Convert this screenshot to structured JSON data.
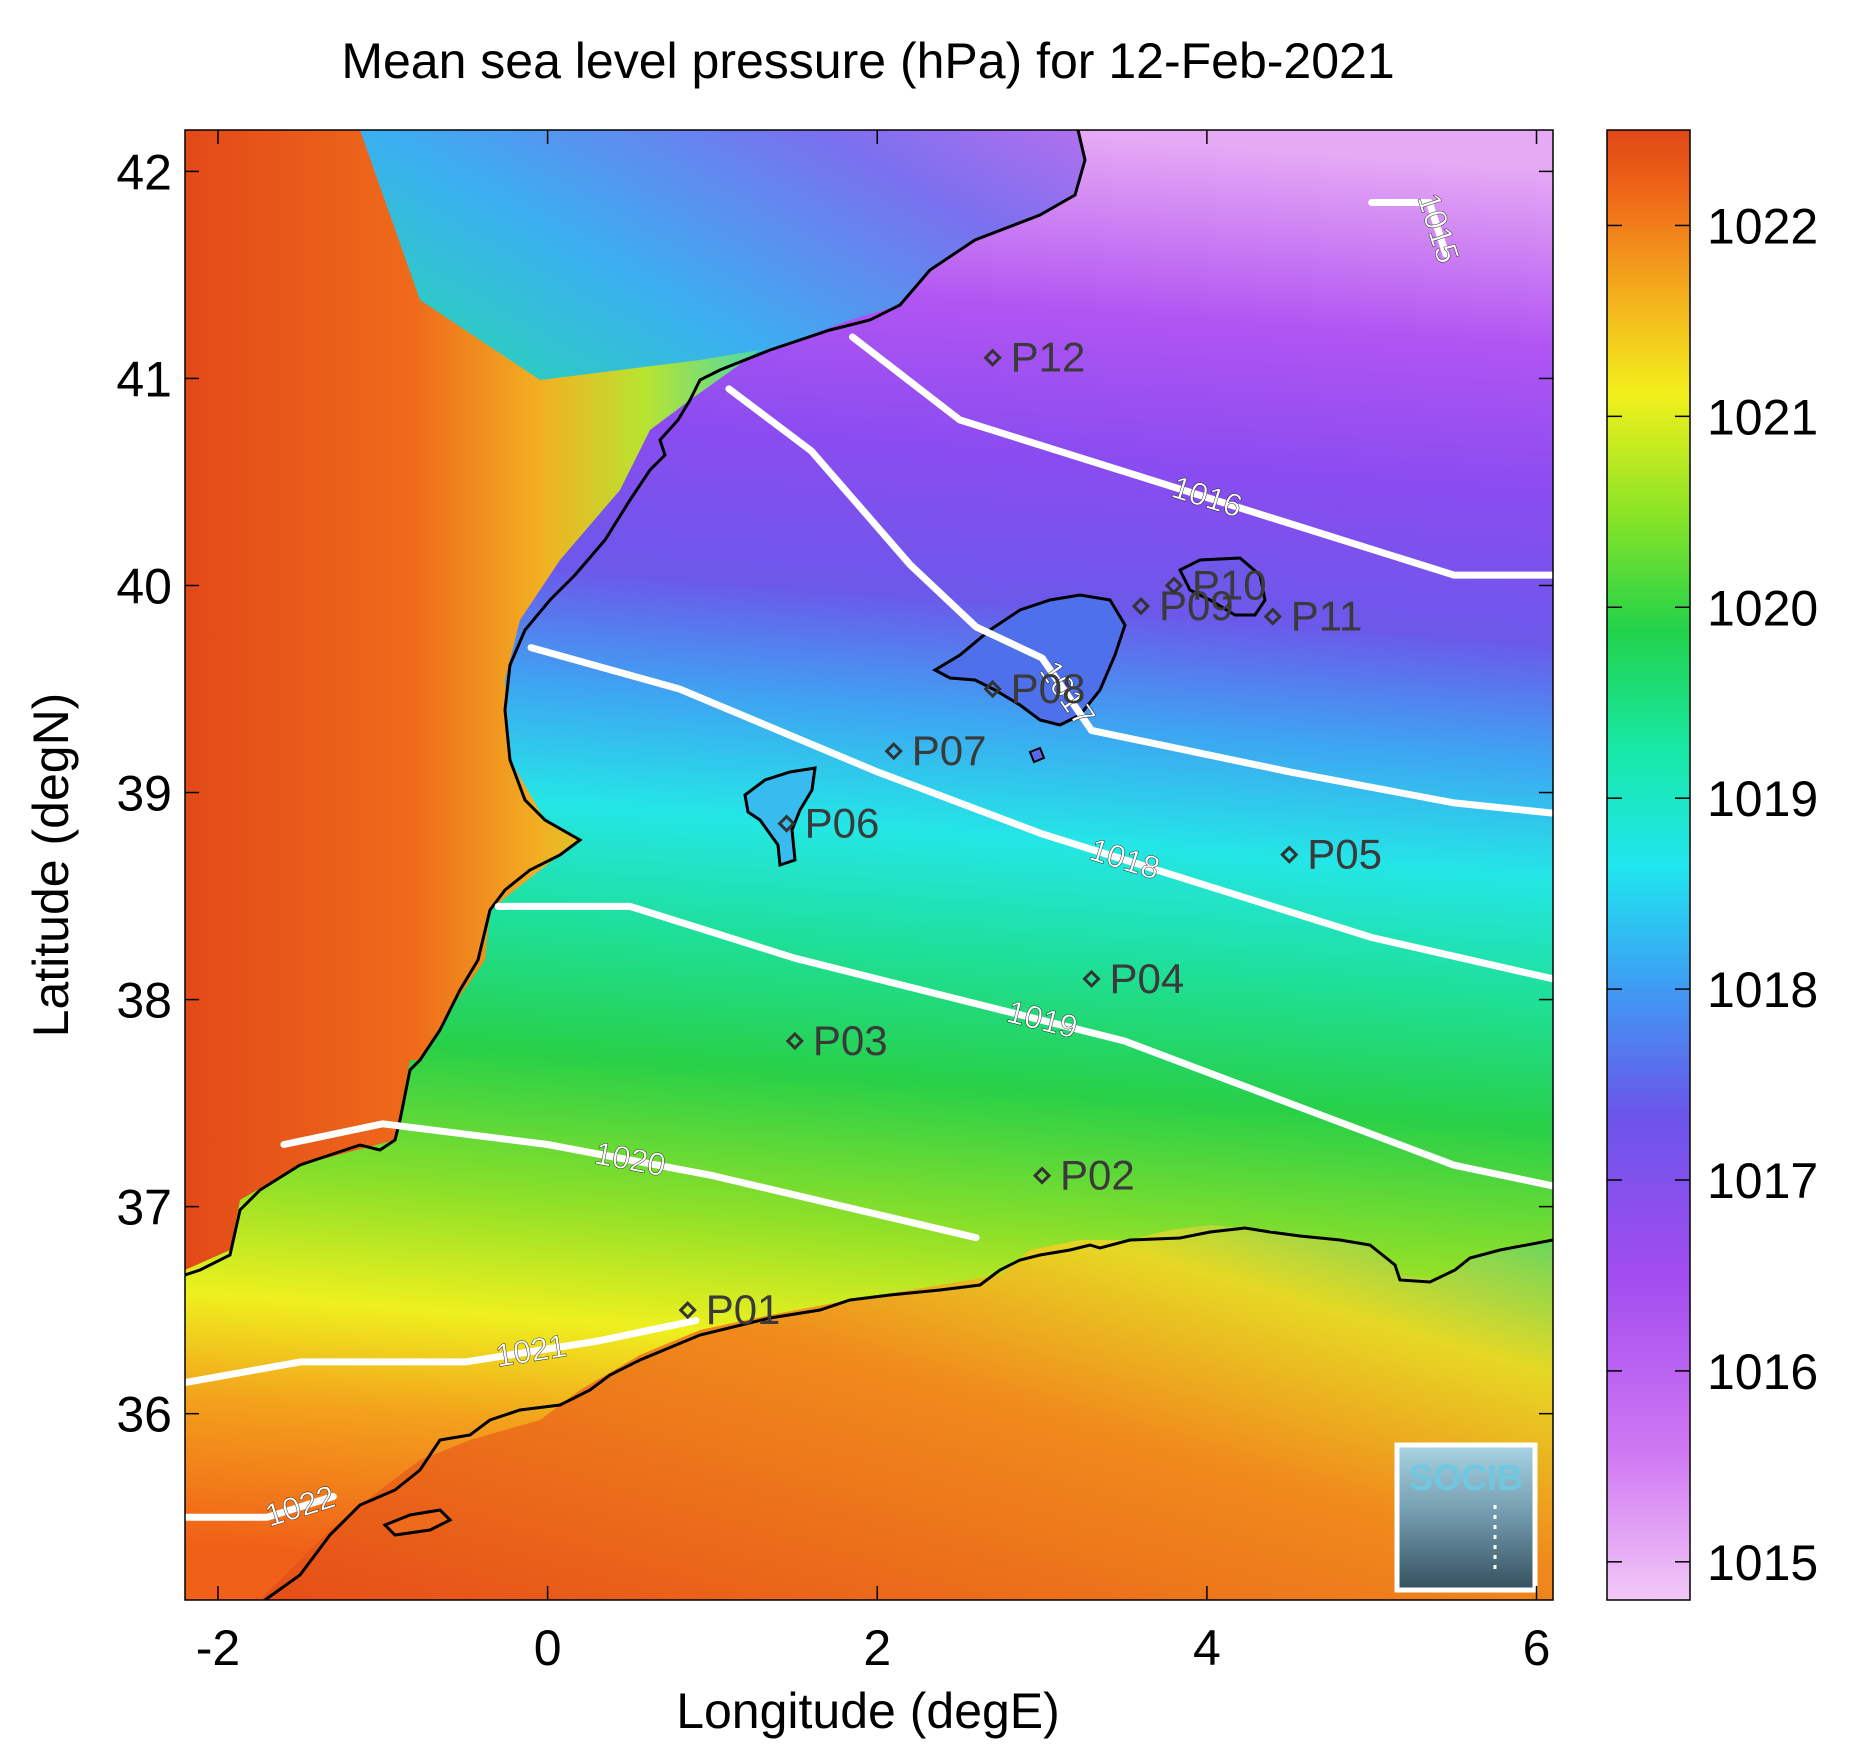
{
  "title": "Mean sea level pressure (hPa) for 12-Feb-2021",
  "axes": {
    "xlabel": "Longitude (degE)",
    "ylabel": "Latitude (degN)",
    "xlim": [
      -2.2,
      6.1
    ],
    "ylim": [
      35.1,
      42.2
    ],
    "xticks": [
      -2,
      0,
      2,
      4,
      6
    ],
    "yticks": [
      36,
      37,
      38,
      39,
      40,
      41,
      42
    ],
    "xtick_labels": [
      "-2",
      "0",
      "2",
      "4",
      "6"
    ],
    "ytick_labels": [
      "36",
      "37",
      "38",
      "39",
      "40",
      "41",
      "42"
    ]
  },
  "colorbar": {
    "range": [
      1014.8,
      1022.5
    ],
    "ticks": [
      1015,
      1016,
      1017,
      1018,
      1019,
      1020,
      1021,
      1022
    ],
    "tick_labels": [
      "1015",
      "1016",
      "1017",
      "1018",
      "1019",
      "1020",
      "1021",
      "1022"
    ]
  },
  "chart_data": {
    "type": "map",
    "contours": [
      {
        "level": "1015",
        "label": "1015",
        "points": [
          [
            5.0,
            41.85
          ],
          [
            5.35,
            41.85
          ],
          [
            5.45,
            41.6
          ]
        ]
      },
      {
        "level": "1016",
        "label": "1016",
        "points": [
          [
            1.85,
            41.2
          ],
          [
            2.5,
            40.8
          ],
          [
            3.5,
            40.55
          ],
          [
            4.5,
            40.3
          ],
          [
            5.5,
            40.05
          ],
          [
            6.1,
            40.05
          ]
        ]
      },
      {
        "level": "1017",
        "label": "1017",
        "points": [
          [
            1.1,
            40.95
          ],
          [
            1.6,
            40.65
          ],
          [
            2.2,
            40.1
          ],
          [
            2.6,
            39.8
          ],
          [
            3.0,
            39.65
          ],
          [
            3.3,
            39.3
          ],
          [
            4.5,
            39.1
          ],
          [
            5.5,
            38.95
          ],
          [
            6.1,
            38.9
          ]
        ]
      },
      {
        "level": "1018",
        "label": "1018",
        "points": [
          [
            -0.1,
            39.7
          ],
          [
            0.8,
            39.5
          ],
          [
            2.0,
            39.1
          ],
          [
            3.0,
            38.8
          ],
          [
            4.0,
            38.55
          ],
          [
            5.0,
            38.3
          ],
          [
            6.1,
            38.1
          ]
        ]
      },
      {
        "level": "1019",
        "label": "1019",
        "points": [
          [
            -0.3,
            38.45
          ],
          [
            0.5,
            38.45
          ],
          [
            1.5,
            38.2
          ],
          [
            2.5,
            38.0
          ],
          [
            3.5,
            37.8
          ],
          [
            4.5,
            37.5
          ],
          [
            5.5,
            37.2
          ],
          [
            6.1,
            37.1
          ]
        ]
      },
      {
        "level": "1020",
        "label": "1020",
        "points": [
          [
            -1.6,
            37.3
          ],
          [
            -1.0,
            37.4
          ],
          [
            0.0,
            37.3
          ],
          [
            1.0,
            37.15
          ],
          [
            1.8,
            37.0
          ],
          [
            2.6,
            36.85
          ]
        ]
      },
      {
        "level": "1021",
        "label": "1021",
        "points": [
          [
            -2.2,
            36.15
          ],
          [
            -1.5,
            36.25
          ],
          [
            -0.5,
            36.25
          ],
          [
            0.3,
            36.35
          ],
          [
            0.9,
            36.45
          ]
        ]
      },
      {
        "level": "1022",
        "label": "1022",
        "points": [
          [
            -2.2,
            35.5
          ],
          [
            -1.7,
            35.5
          ],
          [
            -1.3,
            35.6
          ]
        ]
      }
    ],
    "stations": [
      {
        "label": "P01",
        "lon": 0.85,
        "lat": 36.5
      },
      {
        "label": "P02",
        "lon": 3.0,
        "lat": 37.15
      },
      {
        "label": "P03",
        "lon": 1.5,
        "lat": 37.8
      },
      {
        "label": "P04",
        "lon": 3.3,
        "lat": 38.1
      },
      {
        "label": "P05",
        "lon": 4.5,
        "lat": 38.7
      },
      {
        "label": "P06",
        "lon": 1.45,
        "lat": 38.85
      },
      {
        "label": "P07",
        "lon": 2.1,
        "lat": 39.2
      },
      {
        "label": "P08",
        "lon": 2.7,
        "lat": 39.5
      },
      {
        "label": "P09",
        "lon": 3.6,
        "lat": 39.9
      },
      {
        "label": "P10",
        "lon": 3.8,
        "lat": 40.0
      },
      {
        "label": "P11",
        "lon": 4.4,
        "lat": 39.85
      },
      {
        "label": "P12",
        "lon": 2.7,
        "lat": 41.1
      }
    ]
  },
  "logo": {
    "text": "SOCIB"
  }
}
